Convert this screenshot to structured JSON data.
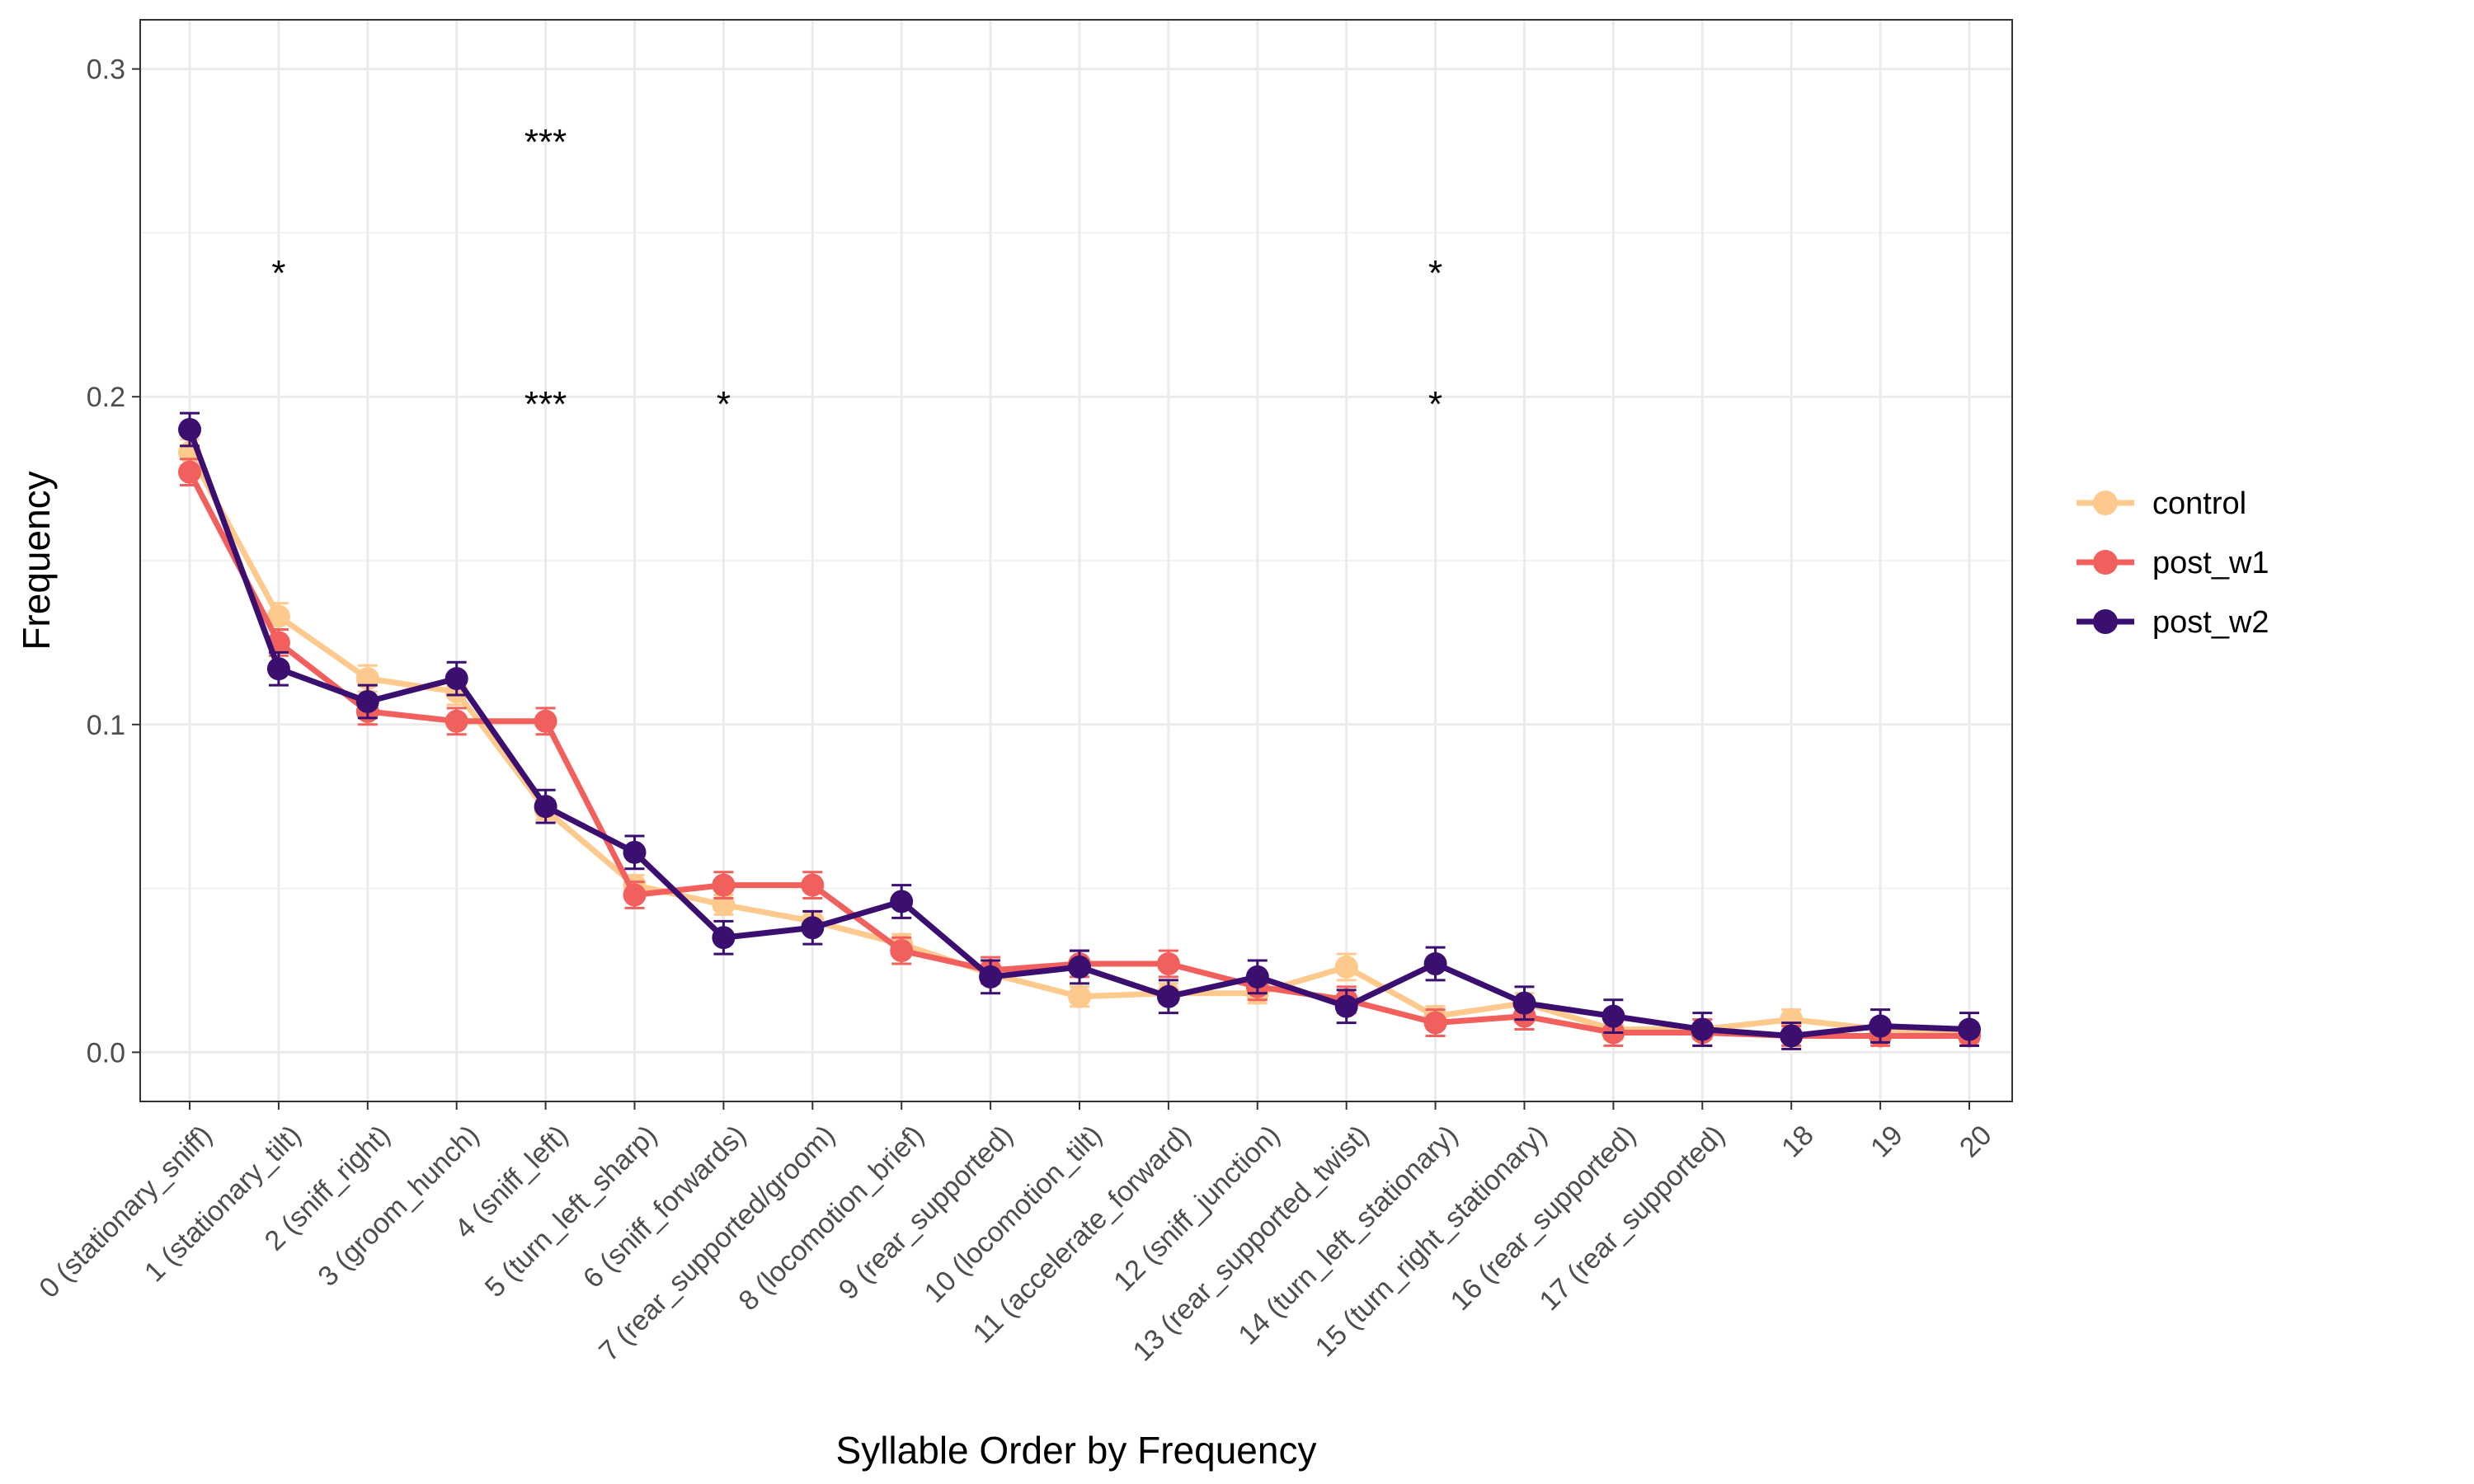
{
  "chart_data": {
    "type": "line",
    "title": "",
    "xlabel": "Syllable Order by Frequency",
    "ylabel": "Frequency",
    "ylim": [
      -0.015,
      0.315
    ],
    "yticks": [
      {
        "value": 0.0,
        "label": "0.0"
      },
      {
        "value": 0.1,
        "label": "0.1"
      },
      {
        "value": 0.2,
        "label": "0.2"
      },
      {
        "value": 0.3,
        "label": "0.3"
      }
    ],
    "grid": true,
    "legend_position": "right",
    "categories": [
      "0 (stationary_sniff)",
      "1 (stationary_tilt)",
      "2 (sniff_right)",
      "3 (groom_hunch)",
      "4 (sniff_left)",
      "5 (turn_left_sharp)",
      "6 (sniff_forwards)",
      "7 (rear_supported/groom)",
      "8 (locomotion_brief)",
      "9 (rear_supported)",
      "10 (locomotion_tilt)",
      "11 (accelerate_forward)",
      "12 (sniff_junction)",
      "13 (rear_supported_twist)",
      "14 (turn_left_stationary)",
      "15 (turn_right_stationary)",
      "16 (rear_supported)",
      "17 (rear_supported)",
      "18",
      "19",
      "20"
    ],
    "series": [
      {
        "name": "control",
        "color": "#FEC98D",
        "values": [
          0.183,
          0.133,
          0.114,
          0.11,
          0.074,
          0.051,
          0.045,
          0.04,
          0.033,
          0.024,
          0.017,
          0.018,
          0.018,
          0.026,
          0.011,
          0.015,
          0.007,
          0.007,
          0.01,
          0.007,
          0.006
        ],
        "errors": [
          0.004,
          0.004,
          0.004,
          0.004,
          0.003,
          0.003,
          0.003,
          0.003,
          0.003,
          0.003,
          0.003,
          0.003,
          0.003,
          0.004,
          0.003,
          0.003,
          0.003,
          0.003,
          0.003,
          0.003,
          0.003
        ]
      },
      {
        "name": "post_w1",
        "color": "#F1605D",
        "values": [
          0.177,
          0.125,
          0.104,
          0.101,
          0.101,
          0.048,
          0.051,
          0.051,
          0.031,
          0.025,
          0.027,
          0.027,
          0.02,
          0.016,
          0.009,
          0.011,
          0.006,
          0.006,
          0.005,
          0.005,
          0.005
        ],
        "errors": [
          0.004,
          0.004,
          0.004,
          0.004,
          0.004,
          0.004,
          0.004,
          0.004,
          0.004,
          0.004,
          0.004,
          0.004,
          0.004,
          0.004,
          0.004,
          0.004,
          0.004,
          0.004,
          0.003,
          0.003,
          0.003
        ]
      },
      {
        "name": "post_w2",
        "color": "#3B0F70",
        "values": [
          0.19,
          0.117,
          0.107,
          0.114,
          0.075,
          0.061,
          0.035,
          0.038,
          0.046,
          0.023,
          0.026,
          0.017,
          0.023,
          0.014,
          0.027,
          0.015,
          0.011,
          0.007,
          0.005,
          0.008,
          0.007
        ],
        "errors": [
          0.005,
          0.005,
          0.005,
          0.005,
          0.005,
          0.005,
          0.005,
          0.005,
          0.005,
          0.005,
          0.005,
          0.005,
          0.005,
          0.005,
          0.005,
          0.005,
          0.005,
          0.005,
          0.004,
          0.005,
          0.005
        ]
      }
    ],
    "annotations": [
      {
        "text": "*",
        "x": 1,
        "y": 0.24
      },
      {
        "text": "***",
        "x": 4,
        "y": 0.28
      },
      {
        "text": "***",
        "x": 4,
        "y": 0.2
      },
      {
        "text": "*",
        "x": 6,
        "y": 0.2
      },
      {
        "text": "*",
        "x": 14,
        "y": 0.24
      },
      {
        "text": "*",
        "x": 14,
        "y": 0.2
      }
    ]
  }
}
